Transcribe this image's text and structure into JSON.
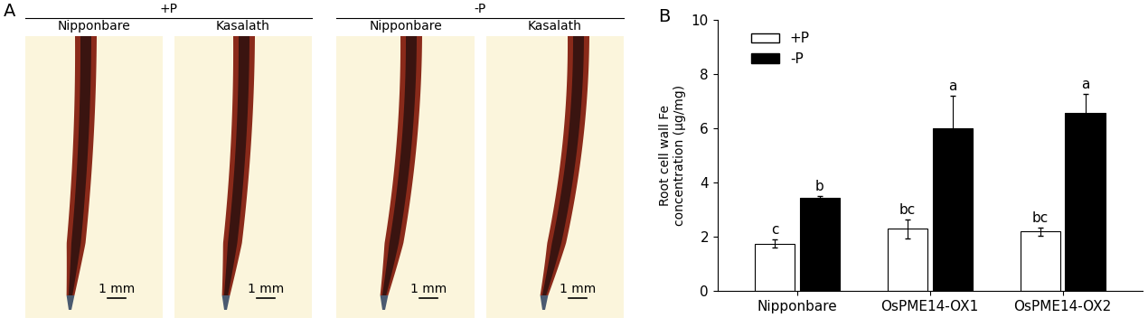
{
  "panel_a": {
    "label": "A",
    "groups": [
      {
        "treatment": "+P",
        "samples": [
          {
            "name": "Nipponbare",
            "scale_bar": "1 mm"
          },
          {
            "name": "Kasalath",
            "scale_bar": "1 mm"
          }
        ]
      },
      {
        "treatment": "-P",
        "samples": [
          {
            "name": "Nipponbare",
            "scale_bar": "1 mm"
          },
          {
            "name": "Kasalath",
            "scale_bar": "1 mm"
          }
        ]
      }
    ]
  },
  "chart_data": {
    "type": "bar",
    "panel_label": "B",
    "categories": [
      "Nipponbare",
      "OsPME14-OX1",
      "OsPME14-OX2"
    ],
    "ylabel": "Root cell wall Fe\nconcentration (μg/mg)",
    "ylim": [
      0,
      10
    ],
    "yticks": [
      0,
      2,
      4,
      6,
      8,
      10
    ],
    "legend": "upper left",
    "series": [
      {
        "name": "+P",
        "color": "#ffffff",
        "values": [
          1.75,
          2.3,
          2.2
        ],
        "errors": [
          0.15,
          0.35,
          0.15
        ],
        "letters": [
          "c",
          "bc",
          "bc"
        ]
      },
      {
        "name": "-P",
        "color": "#000000",
        "values": [
          3.45,
          6.0,
          6.55
        ],
        "errors": [
          0.05,
          1.2,
          0.7
        ],
        "letters": [
          "b",
          "a",
          "a"
        ]
      }
    ]
  }
}
